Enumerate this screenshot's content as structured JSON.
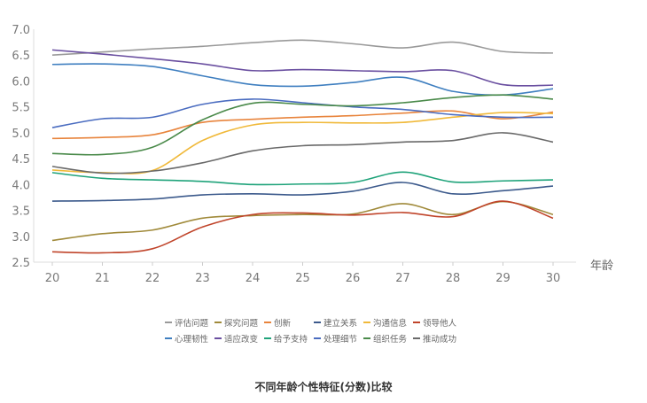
{
  "chart_data": {
    "type": "line",
    "title": "不同年龄个性特征(分数)比较",
    "xlabel": "年龄",
    "ylabel": "",
    "x": [
      20,
      21,
      22,
      23,
      24,
      25,
      26,
      27,
      28,
      29,
      30
    ],
    "ylim": [
      2.5,
      7.0
    ],
    "yticks": [
      "2.5",
      "3.0",
      "3.5",
      "4.0",
      "4.5",
      "5.0",
      "5.5",
      "6.0",
      "6.5",
      "7.0"
    ],
    "xticks": [
      "20",
      "21",
      "22",
      "23",
      "24",
      "25",
      "26",
      "27",
      "28",
      "29",
      "30"
    ],
    "grid": false,
    "legend_position": "bottom",
    "series": [
      {
        "name": "评估问题",
        "color": "#9a9a9a",
        "values": [
          6.5,
          6.56,
          6.62,
          6.67,
          6.74,
          6.79,
          6.72,
          6.64,
          6.75,
          6.57,
          6.54
        ]
      },
      {
        "name": "探究问题",
        "color": "#a08a3a",
        "values": [
          2.92,
          3.05,
          3.12,
          3.35,
          3.4,
          3.42,
          3.43,
          3.63,
          3.42,
          3.67,
          3.42
        ]
      },
      {
        "name": "创新",
        "color": "#e8843c",
        "values": [
          4.89,
          4.91,
          4.96,
          5.2,
          5.26,
          5.3,
          5.33,
          5.38,
          5.42,
          5.27,
          5.4
        ]
      },
      {
        "name": "建立关系",
        "color": "#3c5a8c",
        "values": [
          3.68,
          3.69,
          3.72,
          3.8,
          3.82,
          3.8,
          3.87,
          4.04,
          3.82,
          3.88,
          3.97
        ]
      },
      {
        "name": "沟通信息",
        "color": "#f0b93a",
        "values": [
          4.28,
          4.23,
          4.27,
          4.85,
          5.15,
          5.2,
          5.19,
          5.2,
          5.3,
          5.39,
          5.37
        ]
      },
      {
        "name": "领导他人",
        "color": "#c0442a",
        "values": [
          2.7,
          2.68,
          2.76,
          3.18,
          3.42,
          3.45,
          3.41,
          3.46,
          3.38,
          3.68,
          3.35
        ]
      },
      {
        "name": "心理韧性",
        "color": "#3f7fc0",
        "values": [
          6.32,
          6.33,
          6.28,
          6.1,
          5.93,
          5.9,
          5.97,
          6.07,
          5.8,
          5.73,
          5.85
        ]
      },
      {
        "name": "适应改变",
        "color": "#6a4fa0",
        "values": [
          6.6,
          6.52,
          6.43,
          6.33,
          6.2,
          6.22,
          6.2,
          6.18,
          6.2,
          5.93,
          5.92
        ]
      },
      {
        "name": "给予支持",
        "color": "#1fa37a",
        "values": [
          4.23,
          4.12,
          4.09,
          4.06,
          4.0,
          4.01,
          4.04,
          4.24,
          4.05,
          4.07,
          4.09
        ]
      },
      {
        "name": "处理细节",
        "color": "#4a6cc0",
        "values": [
          5.1,
          5.27,
          5.3,
          5.55,
          5.65,
          5.58,
          5.5,
          5.45,
          5.35,
          5.3,
          5.3
        ]
      },
      {
        "name": "组织任务",
        "color": "#4a8a4a",
        "values": [
          4.6,
          4.58,
          4.72,
          5.25,
          5.57,
          5.55,
          5.52,
          5.58,
          5.68,
          5.73,
          5.65
        ]
      },
      {
        "name": "推动成功",
        "color": "#6a6a6a",
        "values": [
          4.35,
          4.22,
          4.26,
          4.42,
          4.65,
          4.75,
          4.77,
          4.82,
          4.85,
          5.0,
          4.82
        ]
      }
    ]
  }
}
